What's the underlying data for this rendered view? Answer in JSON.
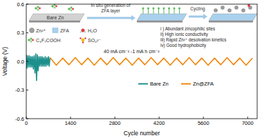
{
  "chart_data": {
    "type": "line",
    "x_label": "Cycle number",
    "y_label": "Voltage (V)",
    "xlim": [
      0,
      7300
    ],
    "xticks": [
      0,
      1400,
      2800,
      4200,
      5600,
      7000
    ],
    "ylim": [
      -0.6,
      0.6
    ],
    "yticks": [
      -0.6,
      -0.3,
      {
        "value": 0,
        "label": "0.0"
      },
      0.3,
      0.6
    ],
    "grid": false,
    "legend": "bottom",
    "annotations": [
      "Bare Zn",
      "In situ generation of",
      "ZFA layer",
      "Cycling",
      "Zn²⁺",
      "ZFA",
      "H₂O",
      "C₃F₇COOH",
      "SO₄²⁻",
      "40 mA cm⁻² -1 mA h cm⁻²",
      "i ) Abundant zincophilic sites",
      "ii) High ionic conductivity",
      "iii) Rapid Zn²⁺ desolvation kinetics",
      "iv) Good hydrophobicity"
    ],
    "series": [
      {
        "name": "Bare Zn",
        "color": "#1d8f8c",
        "x": [
          0,
          25,
          50,
          75,
          100,
          125,
          150,
          175,
          200,
          225,
          250,
          275,
          300,
          325,
          350,
          375,
          400,
          425,
          450,
          475,
          500,
          525,
          550,
          575,
          600,
          625,
          650,
          675,
          700,
          725,
          750
        ],
        "values": [
          0.07,
          -0.07,
          0.06,
          -0.06,
          0.06,
          -0.06,
          0.05,
          -0.06,
          0.05,
          -0.08,
          0.06,
          -0.12,
          0.08,
          -0.2,
          0.07,
          -0.1,
          0.05,
          -0.05,
          0.05,
          -0.05,
          0.05,
          -0.05,
          0.04,
          -0.05,
          0.05,
          -0.05,
          0.04,
          -0.04,
          0.05,
          -0.05,
          0.04
        ]
      },
      {
        "name": "Zn@ZFA",
        "color": "#f0860a",
        "x": [
          750,
          950,
          1150,
          1350,
          1550,
          1750,
          1950,
          2150,
          2350,
          2550,
          2750,
          2950,
          3150,
          3350,
          3550,
          3750,
          3950,
          4150,
          4350,
          4550,
          4750,
          4950,
          5150,
          5350,
          5550,
          5750,
          5950,
          6150,
          6350,
          6550,
          6750,
          6950,
          7150
        ],
        "values": [
          0.04,
          -0.04,
          0.035,
          -0.035,
          0.04,
          -0.035,
          0.035,
          -0.04,
          0.035,
          -0.035,
          0.04,
          -0.035,
          0.035,
          -0.04,
          0.035,
          -0.035,
          0.04,
          -0.035,
          0.035,
          -0.04,
          0.035,
          -0.035,
          0.04,
          -0.035,
          0.035,
          -0.04,
          0.035,
          -0.035,
          0.04,
          -0.035,
          0.035,
          -0.04,
          0.035
        ]
      }
    ]
  }
}
